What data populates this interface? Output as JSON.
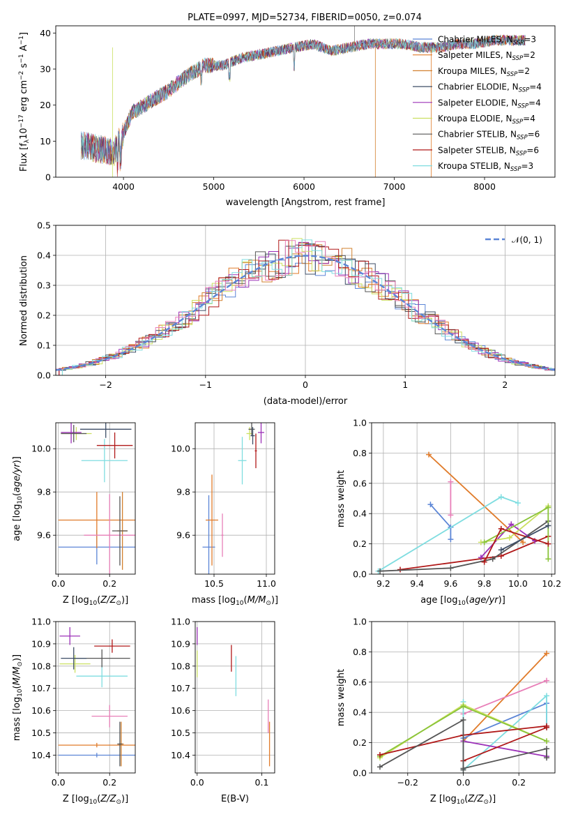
{
  "colors": {
    "chab_miles": "#5b85d6",
    "salp_miles": "#e07b2a",
    "krou_miles": "#d2802e",
    "chab_elodie": "#3d4d66",
    "salp_elodie": "#9b30b8",
    "krou_elodie": "#cbe060",
    "chab_stelib": "#555555",
    "salp_stelib": "#b01818",
    "krou_stelib": "#7fdde0",
    "pink": "#e87fb8",
    "green": "#8ac43a",
    "normal": "#5b85d6",
    "grid": "#b0b0b0"
  },
  "chart_data": [
    {
      "type": "line",
      "title": "PLATE=0997, MJD=52734, FIBERID=0050, z=0.074",
      "xlabel": "wavelength [Angstrom, rest frame]",
      "ylabel": "Flux [f_λ10^-17 erg cm^-2 s^-1 A^-1]",
      "xlim": [
        3250,
        8780
      ],
      "ylim": [
        0,
        42
      ],
      "xticks": [
        "4000",
        "5000",
        "6000",
        "7000",
        "8000"
      ],
      "yticks": [
        "0",
        "10",
        "20",
        "30",
        "40"
      ],
      "grid": false,
      "legend_position": "right",
      "legend": [
        {
          "base": "Chabrier MILES, N",
          "sub": "SSP",
          "tail": "=3"
        },
        {
          "base": "Salpeter MILES, N",
          "sub": "SSP",
          "tail": "=2"
        },
        {
          "base": "Kroupa MILES, N",
          "sub": "SSP",
          "tail": "=2"
        },
        {
          "base": "Chabrier ELODIE, N",
          "sub": "SSP",
          "tail": "=4"
        },
        {
          "base": "Salpeter ELODIE, N",
          "sub": "SSP",
          "tail": "=4"
        },
        {
          "base": "Kroupa ELODIE, N",
          "sub": "SSP",
          "tail": "=4"
        },
        {
          "base": "Chabrier STELIB, N",
          "sub": "SSP",
          "tail": "=6"
        },
        {
          "base": "Salpeter STELIB, N",
          "sub": "SSP",
          "tail": "=6"
        },
        {
          "base": "Kroupa STELIB, N",
          "sub": "SSP",
          "tail": "=3"
        }
      ],
      "spectrum_shape": {
        "x": [
          3500,
          3700,
          3900,
          4100,
          4300,
          4500,
          4700,
          4900,
          5100,
          5300,
          5500,
          5700,
          5900,
          6100,
          6300,
          6500,
          6700,
          6900,
          7100,
          7300,
          7500,
          7700,
          7900,
          8100,
          8300,
          8500
        ],
        "y": [
          9,
          8,
          7,
          18,
          21,
          24,
          28,
          31,
          31,
          33,
          34,
          35,
          36,
          37,
          35,
          36,
          37,
          37,
          37,
          36,
          36,
          37,
          37,
          38,
          38,
          38
        ]
      }
    },
    {
      "type": "area",
      "xlabel": "(data-model)/error",
      "ylabel": "Normed distribution",
      "xlim": [
        -2.5,
        2.5
      ],
      "ylim": [
        0,
        0.5
      ],
      "xticks": [
        "−2",
        "−1",
        "0",
        "1",
        "2"
      ],
      "yticks": [
        "0.0",
        "0.1",
        "0.2",
        "0.3",
        "0.4",
        "0.5"
      ],
      "grid": true,
      "legend": [
        {
          "base": "𝒩(0, 1)"
        }
      ],
      "bin_width": 0.1,
      "normal_curve": {
        "mean": 0,
        "sigma": 1
      }
    },
    {
      "type": "scatter",
      "xlabel": "Z [log10(Z/Z☉)]",
      "ylabel": "age  [log10(age/yr)]",
      "xlim": [
        -0.01,
        0.3
      ],
      "ylim": [
        9.42,
        10.12
      ],
      "xticks": [
        "0.0",
        "0.2"
      ],
      "yticks": [
        "9.6",
        "9.8",
        "10.0"
      ],
      "grid": true,
      "points": [
        {
          "series": "chab_miles",
          "x": 0.15,
          "xerr": 0.15,
          "y": 9.545,
          "yerr": 0.08
        },
        {
          "series": "salp_miles",
          "x": 0.15,
          "xerr": 0.15,
          "y": 9.67,
          "yerr": 0.13
        },
        {
          "series": "krou_miles",
          "x": 0.25,
          "xerr": 0.02,
          "y": 9.62,
          "yerr": 0.18
        },
        {
          "series": "pink",
          "x": 0.2,
          "xerr": 0.1,
          "y": 9.6,
          "yerr": 0.19
        },
        {
          "series": "chab_stelib",
          "x": 0.24,
          "xerr": 0.03,
          "y": 9.62,
          "yerr": 0.16
        },
        {
          "series": "krou_stelib",
          "x": 0.18,
          "xerr": 0.09,
          "y": 9.945,
          "yerr": 0.1
        },
        {
          "series": "salp_stelib",
          "x": 0.22,
          "xerr": 0.07,
          "y": 10.015,
          "yerr": 0.06
        },
        {
          "series": "chab_elodie",
          "x": 0.185,
          "xerr": 0.1,
          "y": 10.09,
          "yerr": 0.04
        },
        {
          "series": "krou_elodie",
          "x": 0.07,
          "xerr": 0.06,
          "y": 10.07,
          "yerr": 0.03
        },
        {
          "series": "salp_elodie",
          "x": 0.05,
          "xerr": 0.04,
          "y": 10.075,
          "yerr": 0.05
        },
        {
          "series": "chab_stelib",
          "x": 0.06,
          "xerr": 0.05,
          "y": 10.07,
          "yerr": 0.04
        }
      ]
    },
    {
      "type": "scatter",
      "xlabel": "mass [log10(M/M☉)]",
      "ylabel": "",
      "xlim": [
        10.32,
        11.08
      ],
      "ylim": [
        9.42,
        10.12
      ],
      "xticks": [
        "10.5",
        "11.0"
      ],
      "yticks": [
        "9.6",
        "9.8",
        "10.0"
      ],
      "grid": true,
      "points": [
        {
          "series": "chab_miles",
          "x": 10.45,
          "xerr": 0.06,
          "y": 9.545,
          "yerr": 0.24
        },
        {
          "series": "salp_miles",
          "x": 10.48,
          "xerr": 0.06,
          "y": 9.67,
          "yerr": 0.21
        },
        {
          "series": "pink",
          "x": 10.58,
          "xerr": 0.01,
          "y": 9.6,
          "yerr": 0.1
        },
        {
          "series": "krou_stelib",
          "x": 10.77,
          "xerr": 0.04,
          "y": 9.945,
          "yerr": 0.11
        },
        {
          "series": "salp_stelib",
          "x": 10.9,
          "xerr": 0.01,
          "y": 9.99,
          "yerr": 0.08
        },
        {
          "series": "krou_elodie",
          "x": 10.84,
          "xerr": 0.03,
          "y": 10.07,
          "yerr": 0.03
        },
        {
          "series": "chab_stelib",
          "x": 10.86,
          "xerr": 0.03,
          "y": 10.09,
          "yerr": 0.03
        },
        {
          "series": "salp_elodie",
          "x": 10.95,
          "xerr": 0.03,
          "y": 10.075,
          "yerr": 0.05
        },
        {
          "series": "chab_elodie",
          "x": 10.87,
          "xerr": 0.02,
          "y": 10.06,
          "yerr": 0.04
        }
      ]
    },
    {
      "type": "line",
      "xlabel": "age  [log10(age/yr)]",
      "ylabel": "mass weight",
      "xlim": [
        9.13,
        10.22
      ],
      "ylim": [
        0,
        1
      ],
      "xticks": [
        "9.2",
        "9.4",
        "9.6",
        "9.8",
        "10.0",
        "10.2"
      ],
      "yticks": [
        "0.0",
        "0.2",
        "0.4",
        "0.6",
        "0.8",
        "1.0"
      ],
      "grid": true,
      "series": [
        {
          "key": "chab_miles",
          "x": [
            9.48,
            9.6,
            9.6
          ],
          "y": [
            0.46,
            0.31,
            0.23
          ]
        },
        {
          "key": "salp_miles",
          "x": [
            9.47,
            10.03
          ],
          "y": [
            0.79,
            0.21
          ]
        },
        {
          "key": "pink",
          "x": [
            9.6,
            9.6
          ],
          "y": [
            0.61,
            0.39
          ]
        },
        {
          "key": "krou_stelib",
          "x": [
            9.17,
            9.9,
            10.0
          ],
          "y": [
            0.02,
            0.51,
            0.47
          ]
        },
        {
          "key": "salp_stelib",
          "x": [
            9.3,
            9.9,
            10.18
          ],
          "y": [
            0.03,
            0.12,
            0.25
          ]
        },
        {
          "key": "chab_stelib",
          "x": [
            9.18,
            9.6,
            9.85,
            10.18
          ],
          "y": [
            0.02,
            0.04,
            0.1,
            0.35
          ]
        },
        {
          "key": "salp_elodie",
          "x": [
            9.78,
            9.96,
            10.1
          ],
          "y": [
            0.11,
            0.33,
            0.22
          ]
        },
        {
          "key": "krou_elodie",
          "x": [
            9.78,
            9.95,
            10.18
          ],
          "y": [
            0.21,
            0.24,
            0.45
          ]
        },
        {
          "key": "green",
          "x": [
            9.8,
            10.18,
            10.18
          ],
          "y": [
            0.21,
            0.44,
            0.1
          ]
        },
        {
          "key": "salp_stelib",
          "x": [
            9.8,
            9.9,
            10.18
          ],
          "y": [
            0.08,
            0.3,
            0.2
          ]
        },
        {
          "key": "chab_elodie",
          "x": [
            9.9,
            10.18
          ],
          "y": [
            0.16,
            0.32
          ]
        }
      ]
    },
    {
      "type": "scatter",
      "xlabel": "Z [log10(Z/Z☉)]",
      "ylabel": "mass [log10(M/M☉)]",
      "xlim": [
        -0.01,
        0.3
      ],
      "ylim": [
        10.32,
        11.0
      ],
      "xticks": [
        "0.0",
        "0.2"
      ],
      "yticks": [
        "10.4",
        "10.5",
        "10.6",
        "10.7",
        "10.8",
        "10.9",
        "11.0"
      ],
      "grid": true,
      "points": [
        {
          "series": "chab_miles",
          "x": 0.15,
          "xerr": 0.15,
          "y": 10.4,
          "yerr": 0.01
        },
        {
          "series": "salp_miles",
          "x": 0.15,
          "xerr": 0.15,
          "y": 10.445,
          "yerr": 0.01
        },
        {
          "series": "krou_miles",
          "x": 0.245,
          "xerr": 0.01,
          "y": 10.45,
          "yerr": 0.1
        },
        {
          "series": "chab_stelib",
          "x": 0.24,
          "xerr": 0.01,
          "y": 10.45,
          "yerr": 0.1
        },
        {
          "series": "pink",
          "x": 0.2,
          "xerr": 0.07,
          "y": 10.575,
          "yerr": 0.05
        },
        {
          "series": "krou_stelib",
          "x": 0.17,
          "xerr": 0.1,
          "y": 10.755,
          "yerr": 0.05
        },
        {
          "series": "krou_elodie",
          "x": 0.065,
          "xerr": 0.06,
          "y": 10.81,
          "yerr": 0.04
        },
        {
          "series": "chab_stelib",
          "x": 0.17,
          "xerr": 0.11,
          "y": 10.835,
          "yerr": 0.04
        },
        {
          "series": "chab_elodie",
          "x": 0.06,
          "xerr": 0.05,
          "y": 10.835,
          "yerr": 0.05
        },
        {
          "series": "salp_stelib",
          "x": 0.21,
          "xerr": 0.07,
          "y": 10.89,
          "yerr": 0.03
        },
        {
          "series": "salp_elodie",
          "x": 0.045,
          "xerr": 0.04,
          "y": 10.935,
          "yerr": 0.04
        }
      ]
    },
    {
      "type": "scatter",
      "xlabel": "E(B-V)",
      "ylabel": "",
      "xlim": [
        -0.003,
        0.12
      ],
      "ylim": [
        10.32,
        11.0
      ],
      "xticks": [
        "0.0",
        "0.1"
      ],
      "yticks": [
        "10.4",
        "10.5",
        "10.6",
        "10.7",
        "10.8",
        "10.9",
        "11.0"
      ],
      "grid": true,
      "points": [
        {
          "series": "salp_elodie",
          "x": 0.0,
          "xerr": 0,
          "y": 10.935,
          "yerr": 0.04
        },
        {
          "series": "krou_elodie",
          "x": 0.0,
          "xerr": 0,
          "y": 10.81,
          "yerr": 0.06
        },
        {
          "series": "salp_stelib",
          "x": 0.053,
          "xerr": 0,
          "y": 10.835,
          "yerr": 0.06
        },
        {
          "series": "krou_stelib",
          "x": 0.06,
          "xerr": 0,
          "y": 10.755,
          "yerr": 0.09
        },
        {
          "series": "pink",
          "x": 0.11,
          "xerr": 0,
          "y": 10.575,
          "yerr": 0.075
        },
        {
          "series": "salp_miles",
          "x": 0.112,
          "xerr": 0,
          "y": 10.45,
          "yerr": 0.1
        }
      ]
    },
    {
      "type": "line",
      "xlabel": "Z [log10(Z/Z☉)]",
      "ylabel": "mass weight",
      "xlim": [
        -0.33,
        0.33
      ],
      "ylim": [
        0,
        1
      ],
      "xticks": [
        "−0.2",
        "0.0",
        "0.2"
      ],
      "yticks": [
        "0.0",
        "0.2",
        "0.4",
        "0.6",
        "0.8",
        "1.0"
      ],
      "grid": true,
      "series": [
        {
          "key": "salp_miles",
          "x": [
            0.0,
            0.3
          ],
          "y": [
            0.21,
            0.79
          ]
        },
        {
          "key": "pink",
          "x": [
            0.0,
            0.3
          ],
          "y": [
            0.39,
            0.61
          ]
        },
        {
          "key": "chab_miles",
          "x": [
            0.0,
            0.3,
            0.3
          ],
          "y": [
            0.23,
            0.46,
            0.31
          ]
        },
        {
          "key": "krou_stelib",
          "x": [
            0.0,
            0.0,
            0.3,
            0.3
          ],
          "y": [
            0.47,
            0.02,
            0.51,
            0.3
          ]
        },
        {
          "key": "salp_elodie",
          "x": [
            0.0,
            0.3
          ],
          "y": [
            0.21,
            0.11
          ]
        },
        {
          "key": "krou_elodie",
          "x": [
            -0.3,
            0.0,
            0.3
          ],
          "y": [
            0.1,
            0.45,
            0.21
          ]
        },
        {
          "key": "green",
          "x": [
            -0.3,
            0.0,
            0.3
          ],
          "y": [
            0.11,
            0.44,
            0.21
          ]
        },
        {
          "key": "salp_stelib",
          "x": [
            -0.3,
            0.0,
            0.3
          ],
          "y": [
            0.12,
            0.25,
            0.31
          ]
        },
        {
          "key": "salp_stelib",
          "x": [
            0.0,
            0.3
          ],
          "y": [
            0.08,
            0.3
          ]
        },
        {
          "key": "chab_stelib",
          "x": [
            -0.3,
            0.0,
            0.0
          ],
          "y": [
            0.04,
            0.35,
            0.02
          ]
        },
        {
          "key": "chab_stelib",
          "x": [
            0.0,
            0.3,
            0.3
          ],
          "y": [
            0.03,
            0.16,
            0.1
          ]
        }
      ]
    }
  ]
}
